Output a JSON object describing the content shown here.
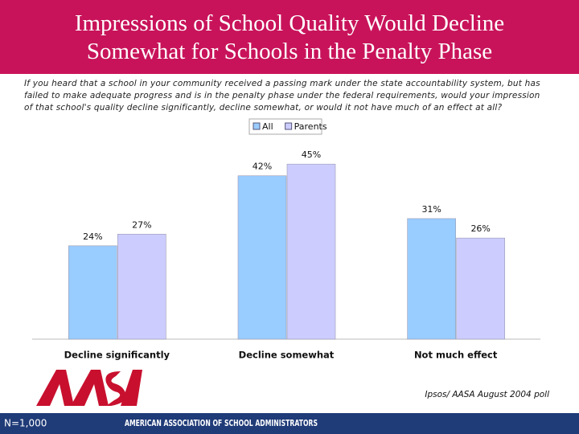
{
  "chart_data": {
    "type": "bar",
    "title": "Impressions of School Quality Would Decline Somewhat for Schools in the Penalty Phase",
    "subtitle": "If you heard that a school in your community received a passing mark under the state accountability system, but has failed to make adequate progress and is in the penalty phase under the federal requirements, would your impression of that school's quality decline significantly, decline somewhat, or would it not have much of an effect at all?",
    "categories": [
      "Decline significantly",
      "Decline somewhat",
      "Not much effect"
    ],
    "series": [
      {
        "name": "All",
        "color": "#99ccff",
        "values": [
          24,
          42,
          31
        ],
        "value_labels": [
          "24%",
          "42%",
          "31%"
        ]
      },
      {
        "name": "Parents",
        "color": "#ccccff",
        "values": [
          27,
          45,
          26
        ],
        "value_labels": [
          "27%",
          "45%",
          "26%"
        ]
      }
    ],
    "ylim": [
      0,
      50
    ],
    "legend": "top",
    "source": "Ipsos/ AASA August 2004 poll"
  },
  "footer": {
    "sample": "N=1,000",
    "organization": "AMERICAN ASSOCIATION OF SCHOOL ADMINISTRATORS"
  }
}
